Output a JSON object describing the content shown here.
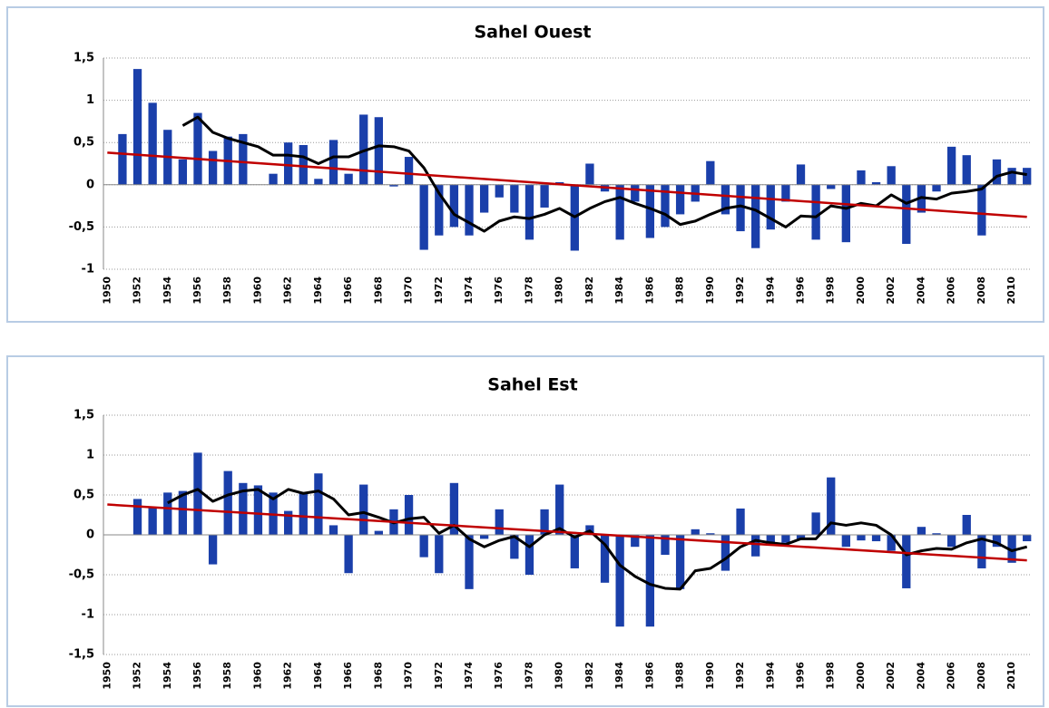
{
  "chart_data": [
    {
      "type": "bar",
      "title": "Sahel Ouest",
      "categories": [
        "1950",
        null,
        "1952",
        null,
        "1954",
        null,
        "1956",
        null,
        "1958",
        null,
        "1960",
        null,
        "1962",
        null,
        "1964",
        null,
        "1966",
        null,
        "1968",
        null,
        "1970",
        null,
        "1972",
        null,
        "1974",
        null,
        "1976",
        null,
        "1978",
        null,
        "1980",
        null,
        "1982",
        null,
        "1984",
        null,
        "1986",
        null,
        "1988",
        null,
        "1990",
        null,
        "1992",
        null,
        "1994",
        null,
        "1996",
        null,
        "1998",
        null,
        "2000",
        null,
        "2002",
        null,
        "2004",
        null,
        "2006",
        null,
        "2008",
        null,
        "2010",
        null
      ],
      "values": [
        0,
        0.6,
        1.37,
        0.97,
        0.65,
        0.3,
        0.85,
        0.4,
        0.57,
        0.6,
        0,
        0.13,
        0.5,
        0.47,
        0.07,
        0.53,
        0.13,
        0.83,
        0.8,
        -0.02,
        0.33,
        -0.77,
        -0.6,
        -0.5,
        -0.6,
        -0.33,
        -0.15,
        -0.33,
        -0.65,
        -0.27,
        0.03,
        -0.78,
        0.25,
        -0.08,
        -0.65,
        -0.2,
        -0.63,
        -0.5,
        -0.35,
        -0.2,
        0.28,
        -0.35,
        -0.55,
        -0.75,
        -0.53,
        -0.2,
        0.24,
        -0.65,
        -0.05,
        -0.68,
        0.17,
        0.03,
        0.22,
        -0.7,
        -0.33,
        -0.08,
        0.45,
        0.35,
        -0.6,
        0.3,
        0.2,
        0.2
      ],
      "color": "#1a3faa",
      "moving_average": {
        "color": "#000000",
        "values": [
          null,
          null,
          null,
          null,
          null,
          0.7,
          0.8,
          0.62,
          0.55,
          0.5,
          0.45,
          0.35,
          0.35,
          0.33,
          0.25,
          0.33,
          0.33,
          0.4,
          0.46,
          0.45,
          0.4,
          0.2,
          -0.1,
          -0.35,
          -0.45,
          -0.55,
          -0.43,
          -0.38,
          -0.4,
          -0.35,
          -0.28,
          -0.38,
          -0.28,
          -0.2,
          -0.15,
          -0.22,
          -0.28,
          -0.35,
          -0.47,
          -0.43,
          -0.35,
          -0.28,
          -0.25,
          -0.3,
          -0.4,
          -0.5,
          -0.37,
          -0.38,
          -0.25,
          -0.28,
          -0.22,
          -0.25,
          -0.12,
          -0.22,
          -0.15,
          -0.17,
          -0.1,
          -0.08,
          -0.05,
          0.1,
          0.15,
          0.12
        ]
      },
      "trend": {
        "color": "#c00000",
        "values": [
          0.38,
          -0.38
        ]
      },
      "ylim": [
        -1,
        1.5
      ],
      "yticks": [
        -1,
        {
          "value": -0.5,
          "label": "-0,5"
        },
        0,
        {
          "value": 0.5,
          "label": "0,5"
        },
        1,
        {
          "value": 1.5,
          "label": "1,5"
        }
      ],
      "grid": true
    },
    {
      "type": "bar",
      "title": "Sahel Est",
      "categories": [
        "1950",
        null,
        "1952",
        null,
        "1954",
        null,
        "1956",
        null,
        "1958",
        null,
        "1960",
        null,
        "1962",
        null,
        "1964",
        null,
        "1966",
        null,
        "1968",
        null,
        "1970",
        null,
        "1972",
        null,
        "1974",
        null,
        "1976",
        null,
        "1978",
        null,
        "1980",
        null,
        "1982",
        null,
        "1984",
        null,
        "1986",
        null,
        "1988",
        null,
        "1990",
        null,
        "1992",
        null,
        "1994",
        null,
        "1996",
        null,
        "1998",
        null,
        "2000",
        null,
        "2002",
        null,
        "2004",
        null,
        "2006",
        null,
        "2008",
        null,
        "2010",
        null
      ],
      "values": [
        0,
        0,
        0.45,
        0.35,
        0.53,
        0.55,
        1.03,
        -0.37,
        0.8,
        0.65,
        0.62,
        0.53,
        0.3,
        0.53,
        0.77,
        0.12,
        -0.48,
        0.63,
        0.05,
        0.32,
        0.5,
        -0.28,
        -0.48,
        0.65,
        -0.68,
        -0.05,
        0.32,
        -0.3,
        -0.5,
        0.32,
        0.63,
        -0.42,
        0.12,
        -0.6,
        -1.15,
        -0.15,
        -1.15,
        -0.25,
        -0.68,
        0.07,
        0.02,
        -0.45,
        0.33,
        -0.27,
        -0.1,
        -0.1,
        -0.05,
        0.28,
        0.72,
        -0.15,
        -0.07,
        -0.08,
        -0.2,
        -0.67,
        0.1,
        0.02,
        -0.15,
        0.25,
        -0.42,
        -0.15,
        -0.35,
        -0.08
      ],
      "color": "#1a3faa",
      "moving_average": {
        "color": "#000000",
        "values": [
          null,
          null,
          null,
          null,
          0.4,
          0.5,
          0.57,
          0.42,
          0.5,
          0.55,
          0.57,
          0.45,
          0.57,
          0.52,
          0.55,
          0.45,
          0.25,
          0.28,
          0.22,
          0.15,
          0.2,
          0.22,
          0.02,
          0.12,
          -0.05,
          -0.15,
          -0.07,
          -0.02,
          -0.15,
          0,
          0.08,
          -0.03,
          0.05,
          -0.12,
          -0.38,
          -0.52,
          -0.62,
          -0.67,
          -0.68,
          -0.45,
          -0.42,
          -0.3,
          -0.15,
          -0.07,
          -0.1,
          -0.12,
          -0.05,
          -0.05,
          0.15,
          0.12,
          0.15,
          0.12,
          0,
          -0.25,
          -0.2,
          -0.17,
          -0.18,
          -0.1,
          -0.05,
          -0.1,
          -0.2,
          -0.15
        ]
      },
      "trend": {
        "color": "#c00000",
        "values": [
          0.38,
          -0.32
        ]
      },
      "ylim": [
        -1.5,
        1.5
      ],
      "yticks": [
        {
          "value": -1.5,
          "label": "-1,5"
        },
        -1,
        {
          "value": -0.5,
          "label": "-0,5"
        },
        0,
        {
          "value": 0.5,
          "label": "0,5"
        },
        1,
        {
          "value": 1.5,
          "label": "1,5"
        }
      ],
      "grid": true
    }
  ]
}
